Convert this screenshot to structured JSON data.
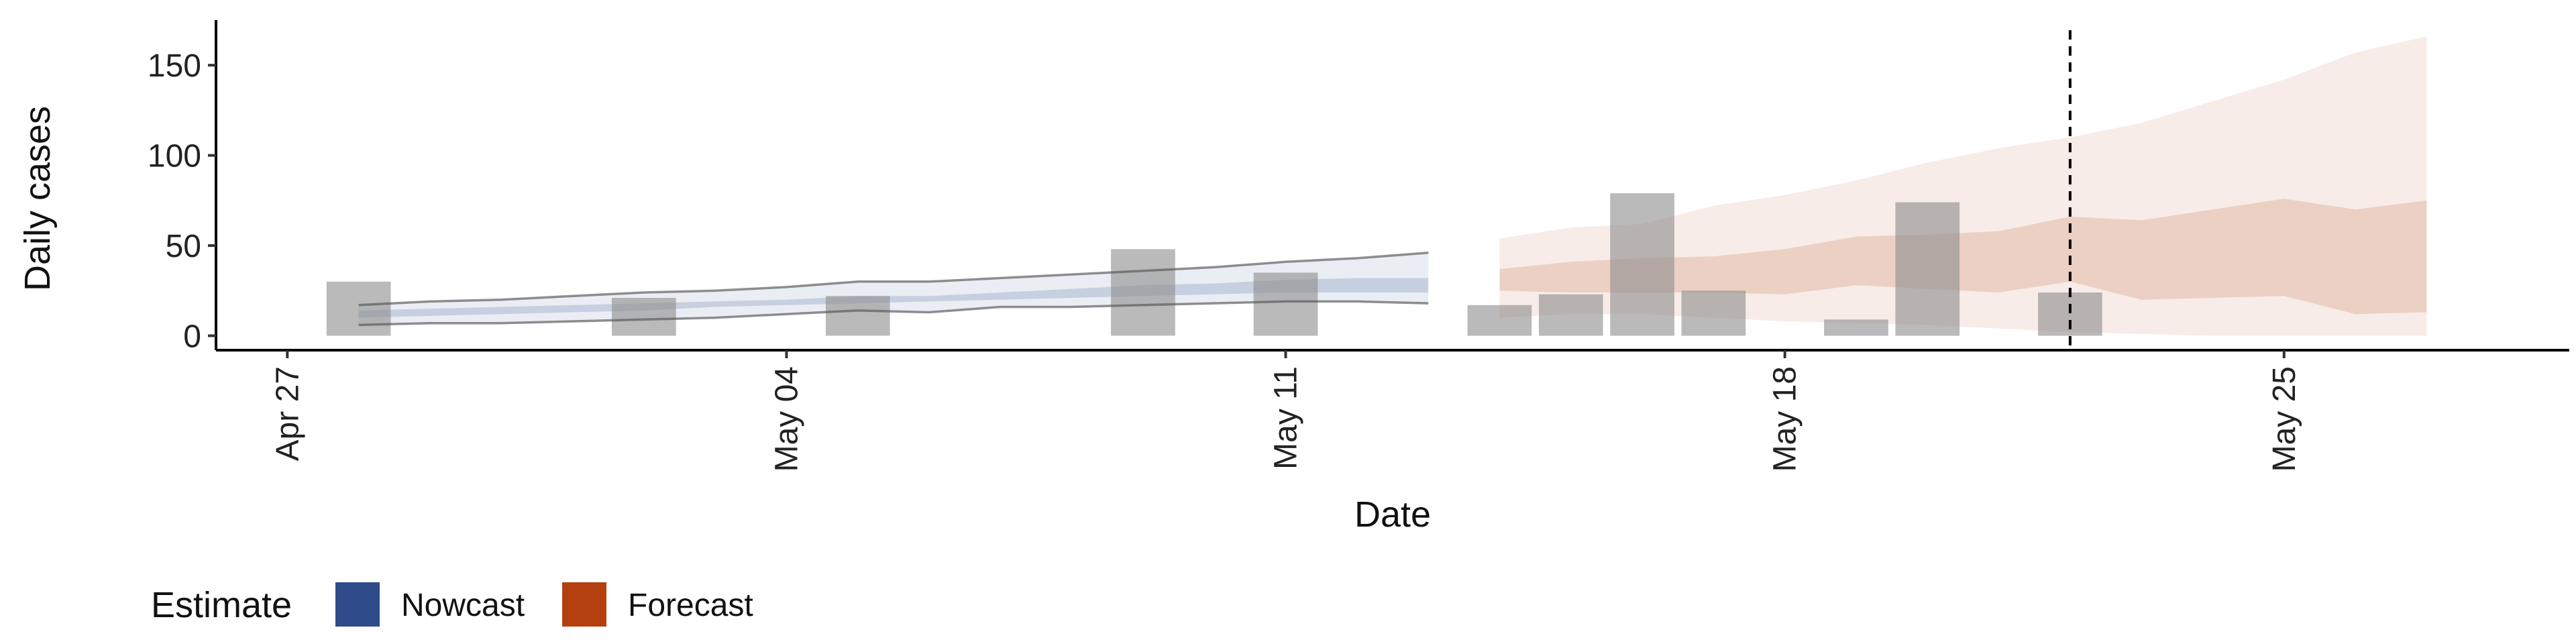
{
  "chart_data": {
    "type": "bar",
    "xlabel": "Date",
    "ylabel": "Daily cases",
    "ylim": [
      -8,
      175
    ],
    "y_ticks": [
      0,
      50,
      100,
      150
    ],
    "x_ticks": [
      {
        "label": "Apr 27",
        "date": "2020-04-27"
      },
      {
        "label": "May 04",
        "date": "2020-05-04"
      },
      {
        "label": "May 11",
        "date": "2020-05-11"
      },
      {
        "label": "May 18",
        "date": "2020-05-18"
      },
      {
        "label": "May 25",
        "date": "2020-05-25"
      }
    ],
    "xlim": [
      "2020-04-26",
      "2020-05-29"
    ],
    "grid": false,
    "reference_line": {
      "date": "2020-05-22",
      "style": "dashed"
    },
    "observed_cases": [
      {
        "date": "2020-04-28",
        "value": 30
      },
      {
        "date": "2020-05-02",
        "value": 21
      },
      {
        "date": "2020-05-05",
        "value": 22
      },
      {
        "date": "2020-05-09",
        "value": 48
      },
      {
        "date": "2020-05-11",
        "value": 35
      },
      {
        "date": "2020-05-14",
        "value": 17
      },
      {
        "date": "2020-05-15",
        "value": 23
      },
      {
        "date": "2020-05-16",
        "value": 79
      },
      {
        "date": "2020-05-17",
        "value": 25
      },
      {
        "date": "2020-05-19",
        "value": 9
      },
      {
        "date": "2020-05-20",
        "value": 74
      },
      {
        "date": "2020-05-22",
        "value": 24
      }
    ],
    "series": [
      {
        "legend_label": "Nowcast",
        "color": "#2f4b8a",
        "dates": [
          "2020-04-28",
          "2020-04-29",
          "2020-04-30",
          "2020-05-01",
          "2020-05-02",
          "2020-05-03",
          "2020-05-04",
          "2020-05-05",
          "2020-05-06",
          "2020-05-07",
          "2020-05-08",
          "2020-05-09",
          "2020-05-10",
          "2020-05-11",
          "2020-05-12",
          "2020-05-13"
        ],
        "outer_lower": [
          6,
          7,
          7,
          8,
          9,
          10,
          12,
          14,
          13,
          16,
          16,
          17,
          18,
          19,
          19,
          18
        ],
        "outer_upper": [
          17,
          19,
          20,
          22,
          24,
          25,
          27,
          30,
          30,
          32,
          34,
          36,
          38,
          41,
          43,
          46
        ],
        "inner_lower": [
          10,
          11,
          12,
          13,
          14,
          16,
          17,
          18,
          19,
          20,
          21,
          22,
          23,
          24,
          24,
          24
        ],
        "inner_upper": [
          14,
          15,
          16,
          17,
          18,
          19,
          20,
          22,
          22,
          24,
          26,
          28,
          29,
          31,
          32,
          32
        ]
      },
      {
        "legend_label": "Forecast",
        "color": "#b5400f",
        "dates": [
          "2020-05-14",
          "2020-05-15",
          "2020-05-16",
          "2020-05-17",
          "2020-05-18",
          "2020-05-19",
          "2020-05-20",
          "2020-05-21",
          "2020-05-22",
          "2020-05-23",
          "2020-05-24",
          "2020-05-25",
          "2020-05-26",
          "2020-05-27"
        ],
        "outer_lower": [
          10,
          12,
          12,
          10,
          8,
          7,
          6,
          4,
          2,
          1,
          0,
          0,
          0,
          0
        ],
        "outer_upper": [
          54,
          60,
          62,
          72,
          78,
          86,
          96,
          104,
          110,
          118,
          130,
          142,
          157,
          166
        ],
        "inner_lower": [
          25,
          24,
          24,
          24,
          23,
          28,
          26,
          24,
          30,
          20,
          21,
          22,
          12,
          13
        ],
        "inner_upper": [
          37,
          41,
          43,
          44,
          48,
          55,
          56,
          58,
          66,
          64,
          70,
          76,
          70,
          75
        ]
      }
    ],
    "legend": {
      "title": "Estimate",
      "position": "bottom-left",
      "entries": [
        "Nowcast",
        "Forecast"
      ]
    }
  }
}
